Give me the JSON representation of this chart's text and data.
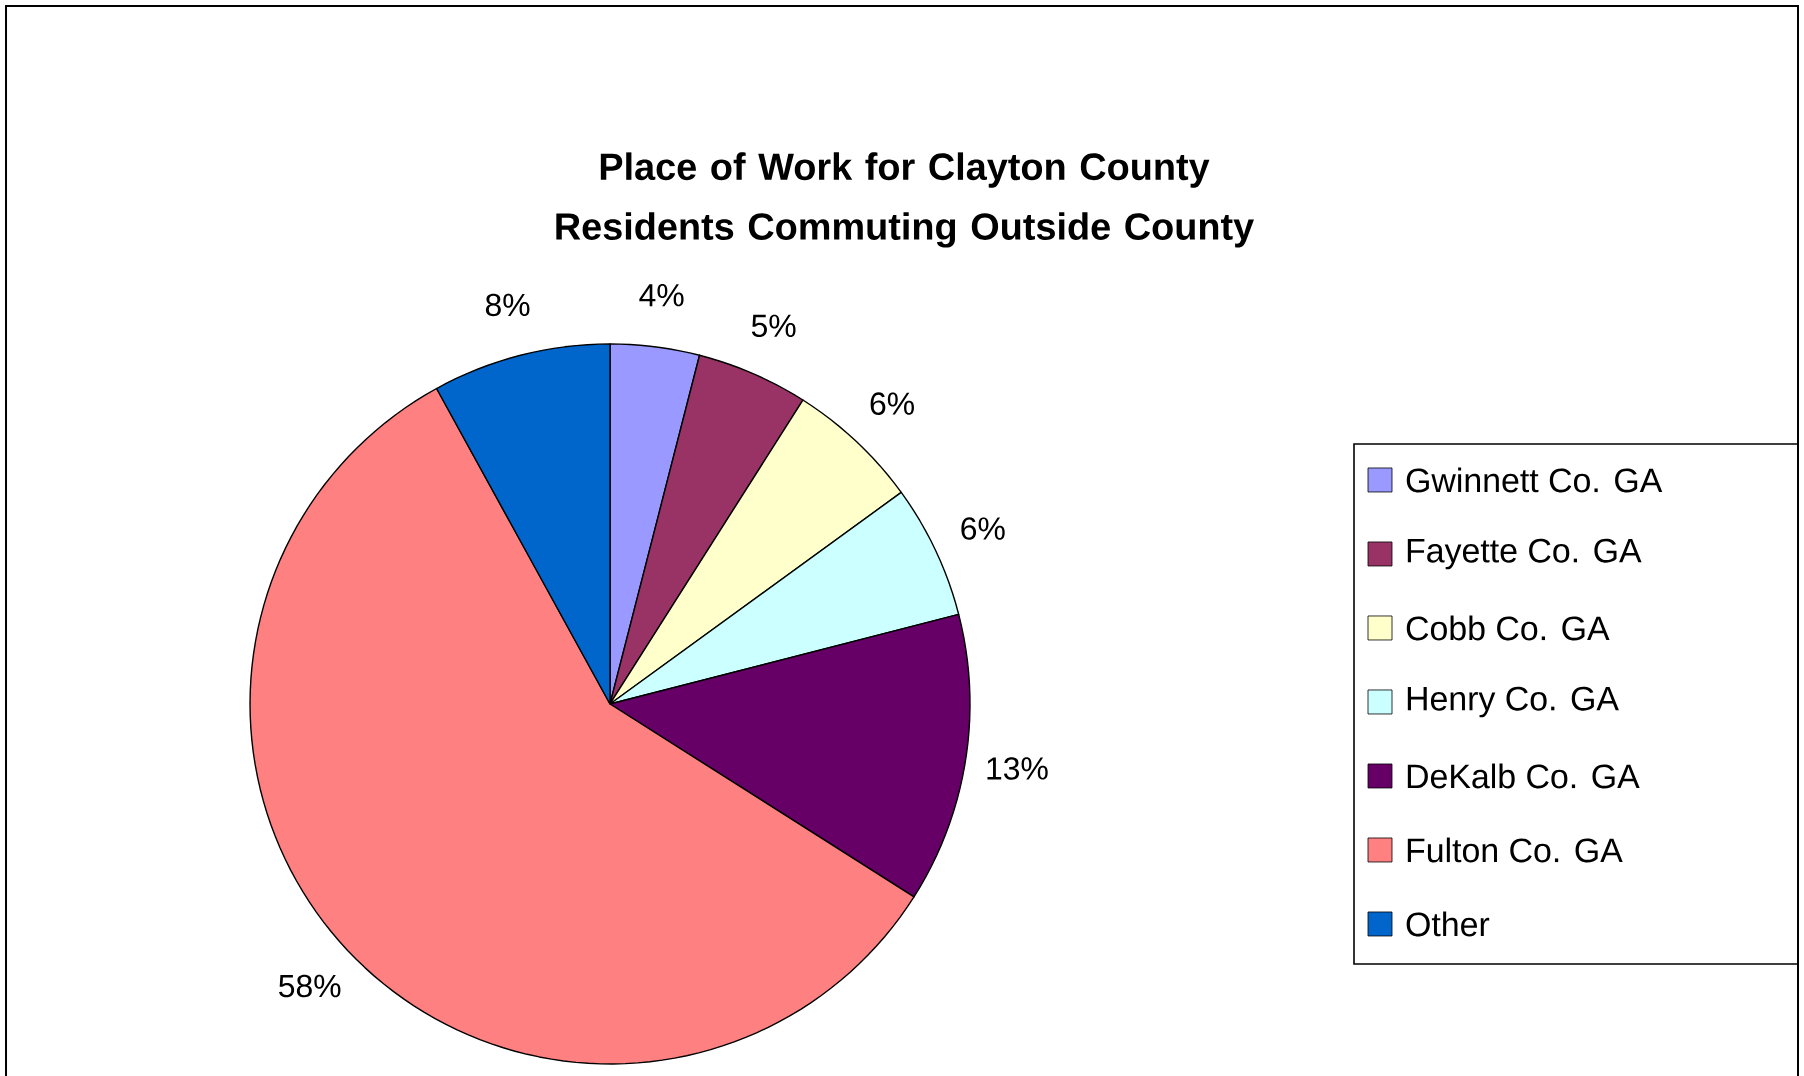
{
  "chart_data": {
    "type": "pie",
    "title": "Place of Work for Clayton County Residents Commuting Outside County",
    "categories": [
      "Gwinnett Co. GA",
      "Fayette Co. GA",
      "Cobb Co. GA",
      "Henry Co. GA",
      "DeKalb Co. GA",
      "Fulton Co. GA",
      "Other"
    ],
    "values": [
      4,
      5,
      6,
      6,
      13,
      58,
      8
    ],
    "colors": [
      "#9999ff",
      "#993366",
      "#ffffcc",
      "#ccffff",
      "#660066",
      "#ff8080",
      "#0066cc"
    ],
    "value_labels": [
      "4%",
      "5%",
      "6%",
      "6%",
      "13%",
      "58%",
      "8%"
    ],
    "legend": "right"
  }
}
